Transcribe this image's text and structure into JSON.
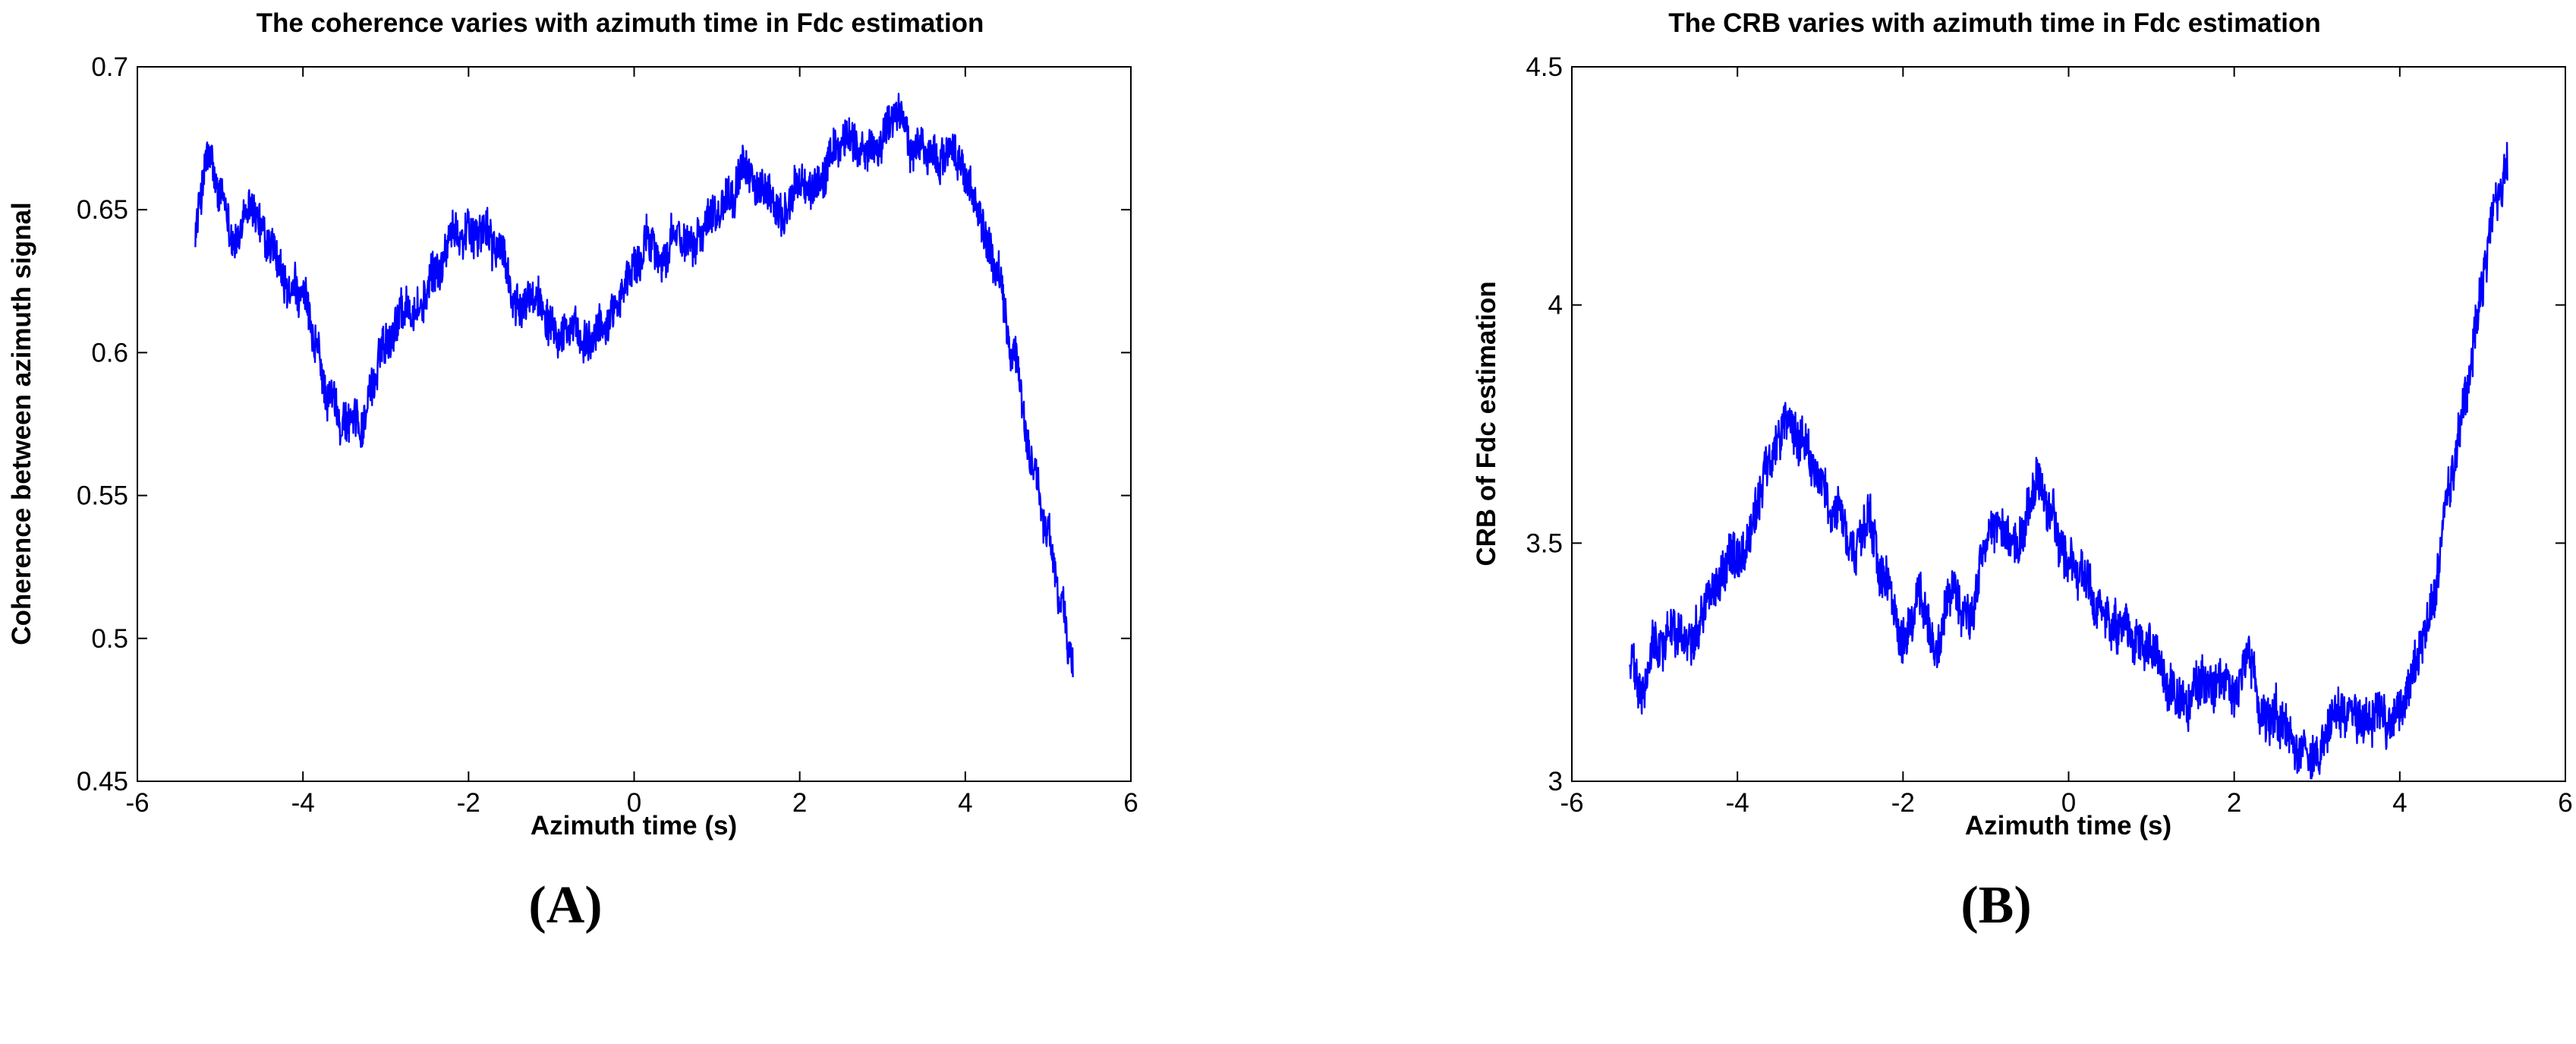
{
  "chart_data": [
    {
      "type": "line",
      "panel_label": "(A)",
      "title": "The coherence varies with azimuth time in Fdc estimation",
      "xlabel": "Azimuth time (s)",
      "ylabel": "Coherence between azimuth signal",
      "xlim": [
        -6,
        6
      ],
      "ylim": [
        0.45,
        0.7
      ],
      "xticks": [
        -6,
        -4,
        -2,
        0,
        2,
        4,
        6
      ],
      "xtick_labels": [
        "-6",
        "-4",
        "-2",
        "0",
        "2",
        "4",
        "6"
      ],
      "yticks": [
        0.45,
        0.5,
        0.55,
        0.6,
        0.65,
        0.7
      ],
      "ytick_labels": [
        "0.45",
        "0.5",
        "0.55",
        "0.6",
        "0.65",
        "0.7"
      ],
      "grid": false,
      "line_color": "#0000ff",
      "noise_amplitude": 0.006,
      "series": [
        {
          "name": "coherence",
          "x": [
            -5.3,
            -5.15,
            -5.0,
            -4.8,
            -4.6,
            -4.4,
            -4.2,
            -4.0,
            -3.85,
            -3.7,
            -3.5,
            -3.3,
            -3.15,
            -3.0,
            -2.8,
            -2.6,
            -2.4,
            -2.2,
            -2.0,
            -1.8,
            -1.6,
            -1.4,
            -1.2,
            -1.0,
            -0.8,
            -0.6,
            -0.4,
            -0.2,
            0.0,
            0.2,
            0.4,
            0.6,
            0.8,
            1.0,
            1.2,
            1.4,
            1.6,
            1.8,
            2.0,
            2.2,
            2.4,
            2.6,
            2.8,
            3.0,
            3.2,
            3.4,
            3.6,
            3.8,
            4.0,
            4.2,
            4.4,
            4.6,
            4.8,
            5.0,
            5.15,
            5.3
          ],
          "y": [
            0.645,
            0.668,
            0.652,
            0.64,
            0.65,
            0.635,
            0.62,
            0.618,
            0.6,
            0.585,
            0.577,
            0.575,
            0.59,
            0.605,
            0.617,
            0.615,
            0.627,
            0.64,
            0.645,
            0.642,
            0.635,
            0.613,
            0.62,
            0.615,
            0.61,
            0.6,
            0.607,
            0.62,
            0.63,
            0.64,
            0.635,
            0.64,
            0.645,
            0.652,
            0.66,
            0.663,
            0.652,
            0.648,
            0.66,
            0.657,
            0.668,
            0.678,
            0.668,
            0.675,
            0.683,
            0.673,
            0.67,
            0.668,
            0.665,
            0.645,
            0.625,
            0.595,
            0.565,
            0.535,
            0.515,
            0.49
          ]
        }
      ]
    },
    {
      "type": "line",
      "panel_label": "(B)",
      "title": "The CRB varies with azimuth time in Fdc estimation",
      "xlabel": "Azimuth time (s)",
      "ylabel": "CRB of Fdc estimation",
      "xlim": [
        -6,
        6
      ],
      "ylim": [
        3,
        4.5
      ],
      "xticks": [
        -6,
        -4,
        -2,
        0,
        2,
        4,
        6
      ],
      "xtick_labels": [
        "-6",
        "-4",
        "-2",
        "0",
        "2",
        "4",
        "6"
      ],
      "yticks": [
        3,
        3.5,
        4,
        4.5
      ],
      "ytick_labels": [
        "3",
        "3.5",
        "4",
        "4.5"
      ],
      "grid": false,
      "line_color": "#0000ff",
      "noise_amplitude": 0.04,
      "series": [
        {
          "name": "CRB",
          "x": [
            -5.3,
            -5.15,
            -5.0,
            -4.8,
            -4.6,
            -4.4,
            -4.2,
            -4.0,
            -3.8,
            -3.6,
            -3.4,
            -3.2,
            -3.0,
            -2.8,
            -2.6,
            -2.4,
            -2.2,
            -2.0,
            -1.8,
            -1.6,
            -1.4,
            -1.2,
            -1.0,
            -0.8,
            -0.6,
            -0.4,
            -0.2,
            0.0,
            0.2,
            0.4,
            0.6,
            0.8,
            1.0,
            1.2,
            1.4,
            1.6,
            1.8,
            2.0,
            2.2,
            2.4,
            2.6,
            2.8,
            3.0,
            3.2,
            3.4,
            3.6,
            3.8,
            4.0,
            4.2,
            4.4,
            4.6,
            4.8,
            5.0,
            5.15,
            5.3
          ],
          "y": [
            3.25,
            3.17,
            3.28,
            3.32,
            3.3,
            3.38,
            3.45,
            3.48,
            3.55,
            3.68,
            3.75,
            3.72,
            3.63,
            3.55,
            3.48,
            3.52,
            3.4,
            3.3,
            3.37,
            3.3,
            3.4,
            3.35,
            3.5,
            3.52,
            3.48,
            3.6,
            3.55,
            3.45,
            3.42,
            3.35,
            3.3,
            3.28,
            3.25,
            3.2,
            3.15,
            3.2,
            3.22,
            3.18,
            3.22,
            3.15,
            3.1,
            3.08,
            3.05,
            3.12,
            3.15,
            3.14,
            3.15,
            3.15,
            3.22,
            3.38,
            3.6,
            3.82,
            4.05,
            4.2,
            4.3
          ]
        }
      ]
    }
  ]
}
